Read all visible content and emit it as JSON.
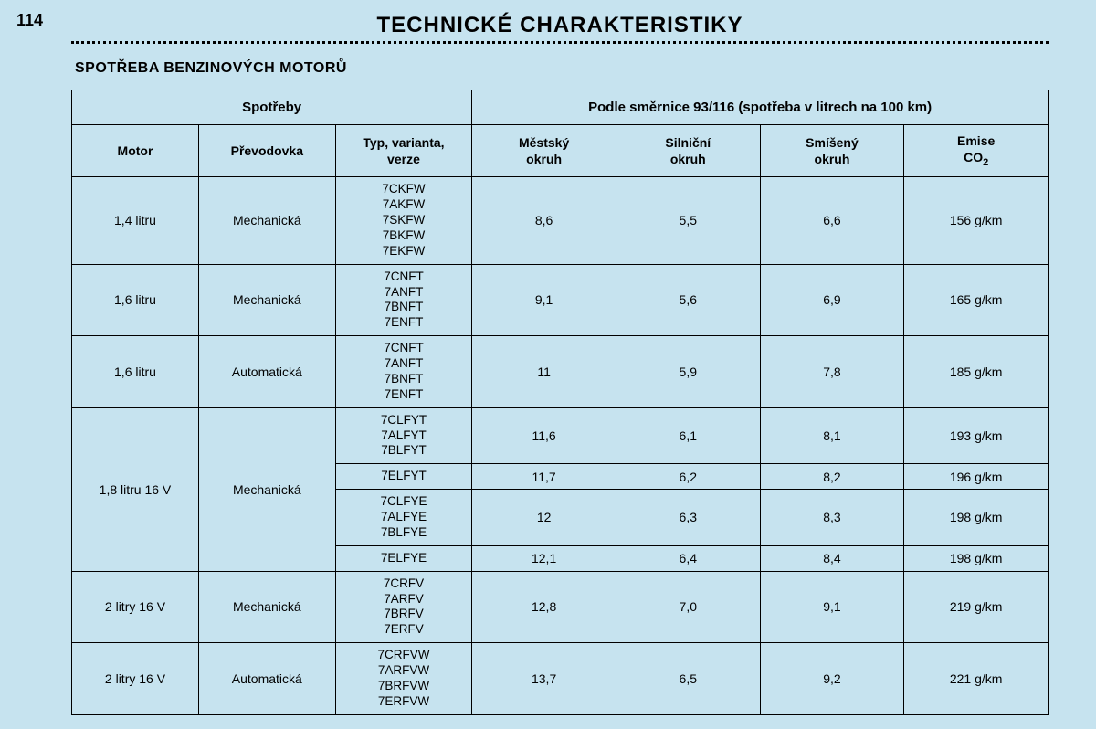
{
  "page_number": "114",
  "title": "TECHNICKÉ CHARAKTERISTIKY",
  "subtitle": "SPOTŘEBA BENZINOVÝCH MOTORŮ",
  "group_headers": {
    "left": "Spotřeby",
    "right": "Podle směrnice 93/116 (spotřeba v litrech na 100 km)"
  },
  "columns": {
    "motor": "Motor",
    "gearbox": "Převodovka",
    "type": "Typ, varianta,\nverze",
    "city": "Městský\nokruh",
    "road": "Silniční\nokruh",
    "mixed": "Smíšený\nokruh",
    "co2_a": "Emise",
    "co2_b": "CO",
    "co2_c": "2"
  },
  "rows": [
    {
      "motor": "1,4 litru",
      "gearbox": "Mechanická",
      "codes": "7CKFW\n7AKFW\n7SKFW\n7BKFW\n7EKFW",
      "city": "8,6",
      "road": "5,5",
      "mixed": "6,6",
      "co2": "156 g/km"
    },
    {
      "motor": "1,6 litru",
      "gearbox": "Mechanická",
      "codes": "7CNFT\n7ANFT\n7BNFT\n7ENFT",
      "city": "9,1",
      "road": "5,6",
      "mixed": "6,9",
      "co2": "165 g/km"
    },
    {
      "motor": "1,6 litru",
      "gearbox": "Automatická",
      "codes": "7CNFT\n7ANFT\n7BNFT\n7ENFT",
      "city": "11",
      "road": "5,9",
      "mixed": "7,8",
      "co2": "185 g/km"
    },
    {
      "motor": "1,8 litru 16 V",
      "gearbox": "Mechanická",
      "sub": [
        {
          "codes": "7CLFYT\n7ALFYT\n7BLFYT",
          "city": "11,6",
          "road": "6,1",
          "mixed": "8,1",
          "co2": "193 g/km"
        },
        {
          "codes": "7ELFYT",
          "city": "11,7",
          "road": "6,2",
          "mixed": "8,2",
          "co2": "196 g/km"
        },
        {
          "codes": "7CLFYE\n7ALFYE\n7BLFYE",
          "city": "12",
          "road": "6,3",
          "mixed": "8,3",
          "co2": "198 g/km"
        },
        {
          "codes": "7ELFYE",
          "city": "12,1",
          "road": "6,4",
          "mixed": "8,4",
          "co2": "198 g/km"
        }
      ]
    },
    {
      "motor": "2 litry 16 V",
      "gearbox": "Mechanická",
      "codes": "7CRFV\n7ARFV\n7BRFV\n7ERFV",
      "city": "12,8",
      "road": "7,0",
      "mixed": "9,1",
      "co2": "219 g/km"
    },
    {
      "motor": "2 litry 16 V",
      "gearbox": "Automatická",
      "codes": "7CRFVW\n7ARFVW\n7BRFVW\n7ERFVW",
      "city": "13,7",
      "road": "6,5",
      "mixed": "9,2",
      "co2": "221 g/km"
    }
  ],
  "colors": {
    "background": "#c6e3ef",
    "border": "#000000"
  }
}
